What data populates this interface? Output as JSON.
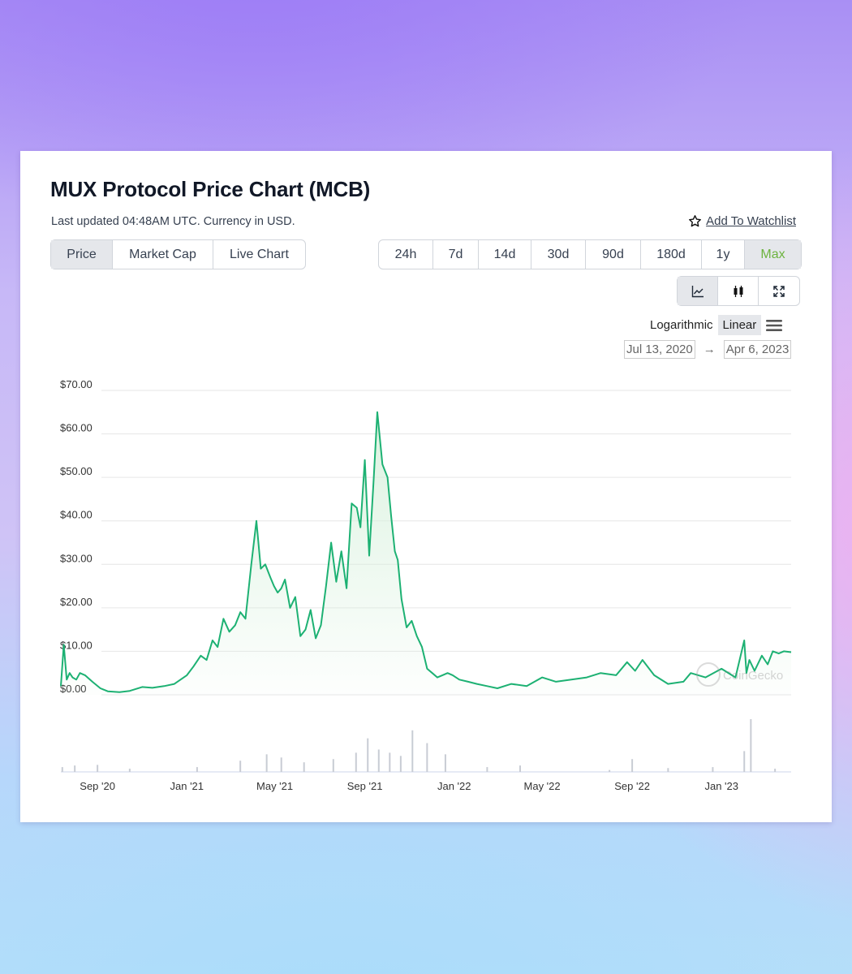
{
  "header": {
    "title": "MUX Protocol Price Chart (MCB)",
    "updated": "Last updated 04:48AM UTC. Currency in USD.",
    "watchlist": "Add To Watchlist"
  },
  "tabs": [
    "Price",
    "Market Cap",
    "Live Chart"
  ],
  "ranges": [
    "24h",
    "7d",
    "14d",
    "30d",
    "90d",
    "180d",
    "1y",
    "Max"
  ],
  "active_range": "Max",
  "tools": [
    "line-chart-icon",
    "candlestick-icon",
    "fullscreen-icon"
  ],
  "scale": {
    "log": "Logarithmic",
    "linear": "Linear"
  },
  "date_range": {
    "from": "Jul 13, 2020",
    "to": "Apr 6, 2023"
  },
  "colors": {
    "line": "#1db173",
    "fill": "#d8f1dd",
    "accent": "#6db33f"
  },
  "chart_data": {
    "type": "area",
    "ylabel": "",
    "ylim": [
      0,
      70
    ],
    "y_ticks": [
      "$70.00",
      "$60.00",
      "$50.00",
      "$40.00",
      "$30.00",
      "$20.00",
      "$10.00",
      "$0.00"
    ],
    "x_ticks": [
      "Sep '20",
      "Jan '21",
      "May '21",
      "Sep '21",
      "Jan '22",
      "May '22",
      "Sep '22",
      "Jan '23"
    ],
    "watermark": "CoinGecko",
    "series": [
      {
        "x": [
          "2020-07-13",
          "2020-07-17",
          "2020-07-21",
          "2020-07-25",
          "2020-07-29",
          "2020-08-03",
          "2020-08-08",
          "2020-08-15",
          "2020-08-25",
          "2020-09-05",
          "2020-09-15",
          "2020-10-01",
          "2020-10-15",
          "2020-11-01",
          "2020-11-15",
          "2020-12-01",
          "2020-12-15",
          "2021-01-01",
          "2021-01-10",
          "2021-01-20",
          "2021-01-28",
          "2021-02-05",
          "2021-02-12",
          "2021-02-20",
          "2021-02-28",
          "2021-03-08",
          "2021-03-15",
          "2021-03-22",
          "2021-03-30",
          "2021-04-06",
          "2021-04-12",
          "2021-04-18",
          "2021-04-25",
          "2021-04-30",
          "2021-05-05",
          "2021-05-10",
          "2021-05-15",
          "2021-05-22",
          "2021-05-29",
          "2021-06-05",
          "2021-06-12",
          "2021-06-19",
          "2021-06-26",
          "2021-07-03",
          "2021-07-10",
          "2021-07-17",
          "2021-07-24",
          "2021-07-31",
          "2021-08-07",
          "2021-08-14",
          "2021-08-21",
          "2021-08-26",
          "2021-09-01",
          "2021-09-07",
          "2021-09-13",
          "2021-09-18",
          "2021-09-25",
          "2021-10-02",
          "2021-10-07",
          "2021-10-12",
          "2021-10-16",
          "2021-10-21",
          "2021-10-28",
          "2021-11-04",
          "2021-11-11",
          "2021-11-18",
          "2021-11-25",
          "2021-12-02",
          "2021-12-09",
          "2021-12-16",
          "2021-12-23",
          "2021-12-30",
          "2022-01-08",
          "2022-01-20",
          "2022-02-01",
          "2022-02-15",
          "2022-03-01",
          "2022-03-20",
          "2022-04-10",
          "2022-05-01",
          "2022-05-20",
          "2022-06-10",
          "2022-07-01",
          "2022-07-20",
          "2022-08-10",
          "2022-08-25",
          "2022-09-05",
          "2022-09-15",
          "2022-10-01",
          "2022-10-20",
          "2022-11-10",
          "2022-11-20",
          "2022-12-10",
          "2023-01-01",
          "2023-01-20",
          "2023-02-01",
          "2023-02-04",
          "2023-02-08",
          "2023-02-15",
          "2023-02-25",
          "2023-03-05",
          "2023-03-12",
          "2023-03-20",
          "2023-03-27",
          "2023-04-06"
        ],
        "y": [
          2.0,
          11.5,
          3.5,
          5.0,
          4.0,
          3.5,
          5.0,
          4.5,
          3.0,
          1.5,
          0.8,
          0.6,
          0.9,
          1.8,
          1.6,
          2.0,
          2.5,
          4.5,
          6.5,
          9.0,
          8.0,
          12.5,
          11.0,
          17.5,
          14.5,
          16.0,
          19.0,
          17.5,
          30.0,
          40.0,
          29.0,
          30.0,
          27.0,
          25.0,
          23.5,
          24.5,
          26.5,
          20.0,
          22.5,
          13.5,
          15.0,
          19.5,
          13.0,
          16.0,
          25.0,
          35.0,
          26.0,
          33.0,
          24.5,
          44.0,
          43.0,
          38.5,
          54.0,
          32.0,
          49.5,
          65.0,
          53.0,
          50.0,
          41.0,
          33.0,
          31.0,
          22.0,
          15.5,
          17.0,
          13.5,
          11.0,
          6.0,
          5.0,
          4.0,
          4.5,
          5.0,
          4.5,
          3.5,
          3.0,
          2.5,
          2.0,
          1.5,
          2.5,
          2.0,
          4.0,
          3.0,
          3.5,
          4.0,
          5.0,
          4.5,
          7.5,
          5.5,
          8.0,
          4.5,
          2.5,
          3.0,
          5.0,
          4.0,
          6.0,
          4.0,
          12.5,
          5.0,
          8.0,
          5.5,
          9.0,
          7.0,
          10.0,
          9.5,
          10.0,
          9.8
        ]
      }
    ],
    "volume": {
      "x": [
        "2020-07-15",
        "2020-08-01",
        "2020-09-01",
        "2020-10-15",
        "2021-01-15",
        "2021-03-15",
        "2021-04-20",
        "2021-05-10",
        "2021-06-10",
        "2021-07-20",
        "2021-08-20",
        "2021-09-05",
        "2021-09-20",
        "2021-10-05",
        "2021-10-20",
        "2021-11-05",
        "2021-11-25",
        "2021-12-20",
        "2022-02-15",
        "2022-04-01",
        "2022-08-01",
        "2022-09-01",
        "2022-10-20",
        "2022-12-20",
        "2023-02-01",
        "2023-02-10",
        "2023-03-15"
      ],
      "y": [
        1.5,
        2.0,
        2.2,
        1.0,
        1.5,
        3.5,
        5.5,
        4.5,
        3.0,
        4.0,
        6.0,
        10.5,
        7.0,
        6.0,
        5.0,
        13.0,
        9.0,
        5.5,
        1.5,
        2.0,
        0.6,
        4.0,
        1.2,
        1.5,
        6.5,
        16.5,
        1.0
      ]
    }
  }
}
